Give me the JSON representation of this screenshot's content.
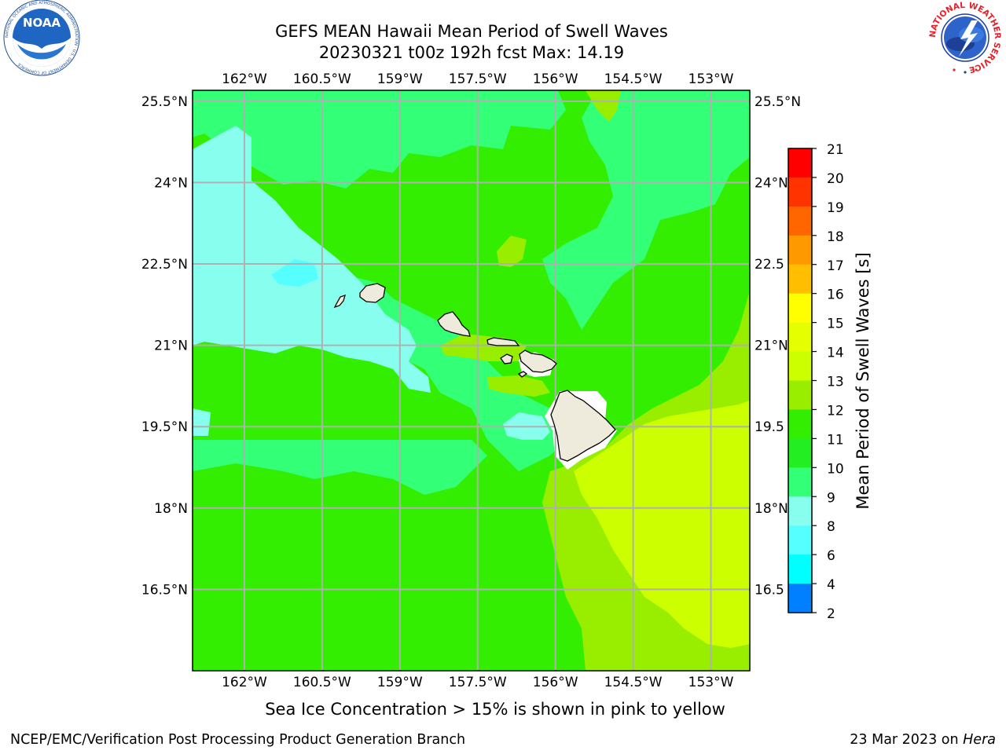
{
  "title": {
    "line1": "GEFS MEAN Hawaii Mean Period of Swell Waves",
    "line2": "20230321 t00z 192h fcst   Max: 14.19"
  },
  "map": {
    "lon_labels": [
      "162°W",
      "160.5°W",
      "159°W",
      "157.5°W",
      "156°W",
      "154.5°W",
      "153°W"
    ],
    "lat_labels": [
      "25.5°N",
      "24°N",
      "22.5°N",
      "21°N",
      "19.5°N",
      "18°N",
      "16.5°N"
    ],
    "lat_labels_right": [
      "25.5°N",
      "24°N",
      "22.5",
      "21°N",
      "19.5",
      "18°N",
      "16.5"
    ],
    "lon_values": [
      -162,
      -160.5,
      -159,
      -157.5,
      -156,
      -154.5,
      -153
    ],
    "lat_values": [
      25.5,
      24,
      22.5,
      21,
      19.5,
      18,
      16.5
    ],
    "lon_range": [
      -163,
      -152.25
    ],
    "lat_range": [
      15,
      25.7
    ],
    "grid": true,
    "land_color": "#eeebdc",
    "max_value": 14.19
  },
  "colorbar": {
    "label": "Mean Period of Swell Waves [s]",
    "ticks": [
      "21",
      "20",
      "19",
      "18",
      "17",
      "16",
      "15",
      "14",
      "13",
      "12",
      "11",
      "10",
      "9",
      "8",
      "6",
      "4",
      "2"
    ],
    "colors_top_to_bottom": [
      "#ff0000",
      "#ff3300",
      "#ff6600",
      "#ff9900",
      "#ffbf00",
      "#ffff00",
      "#e6ff00",
      "#ccff00",
      "#99ee00",
      "#33ee00",
      "#22ee22",
      "#33ff77",
      "#88ffee",
      "#55ffff",
      "#00ffff",
      "#0080ff",
      "#0000ff"
    ]
  },
  "logos": {
    "noaa_text": "NOAA",
    "noaa_ring_text": "NATIONAL OCEANIC AND ATMOSPHERIC ADMINISTRATION · U.S. DEPARTMENT OF COMMERCE",
    "nws_ring_text": "NATIONAL WEATHER SERVICE"
  },
  "caption": "Sea Ice Concentration > 15% is shown in pink to yellow",
  "footer": {
    "left": "NCEP/EMC/Verification Post Processing Product Generation Branch",
    "right_prefix": "23 Mar 2023 on ",
    "right_italic": "Hera"
  }
}
